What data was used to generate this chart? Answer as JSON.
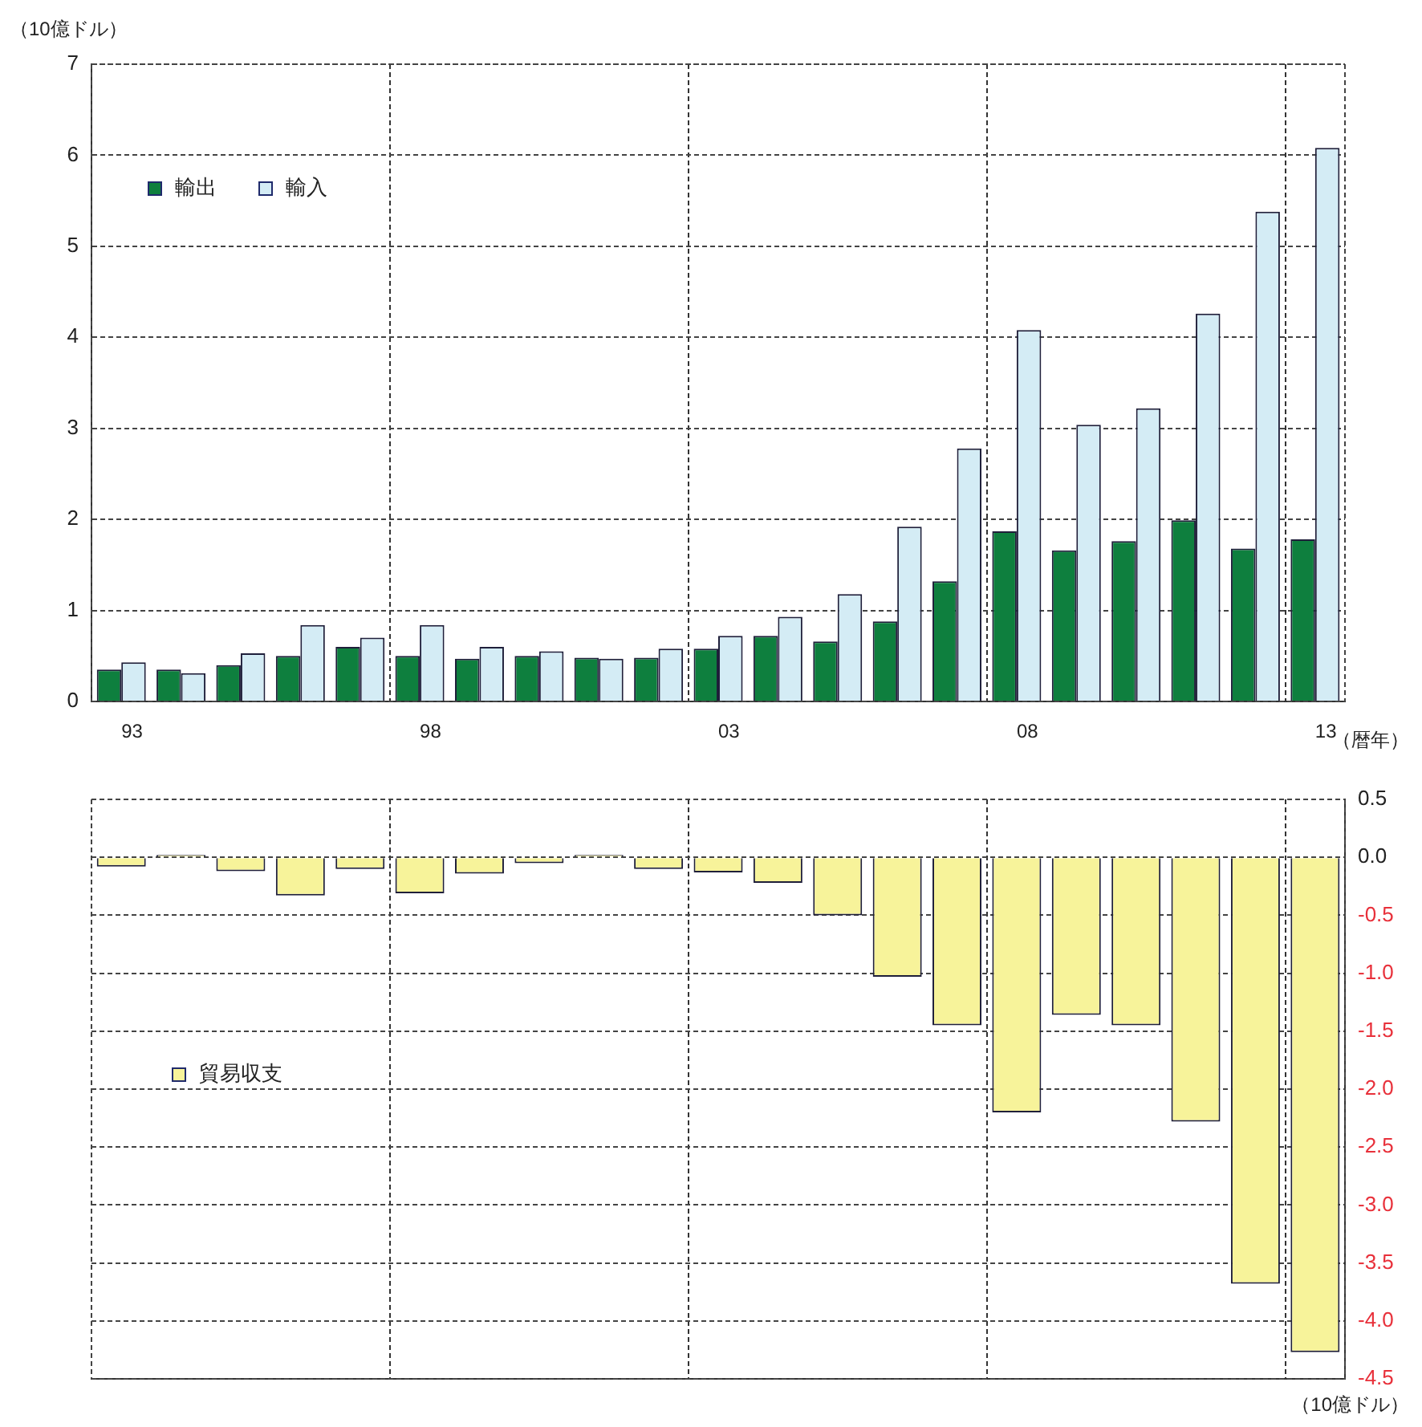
{
  "chart_data": [
    {
      "type": "bar",
      "ylabel": "（10億ドル）",
      "xlabel": "（暦年）",
      "categories": [
        "93",
        null,
        null,
        null,
        null,
        "98",
        null,
        null,
        null,
        null,
        "03",
        null,
        null,
        null,
        null,
        "08",
        null,
        null,
        null,
        null,
        "13"
      ],
      "series": [
        {
          "name": "輸出",
          "color": "#0e7f3e",
          "values": [
            0.35,
            0.35,
            0.4,
            0.5,
            0.6,
            0.5,
            0.47,
            0.5,
            0.48,
            0.48,
            0.58,
            0.72,
            0.66,
            0.88,
            1.32,
            1.87,
            1.66,
            1.76,
            1.99,
            1.68,
            1.78
          ]
        },
        {
          "name": "輸入",
          "color": "#d4ecf5",
          "values": [
            0.43,
            0.31,
            0.53,
            0.84,
            0.7,
            0.84,
            0.6,
            0.55,
            0.47,
            0.58,
            0.72,
            0.93,
            1.18,
            1.92,
            2.78,
            4.08,
            3.04,
            3.22,
            4.26,
            5.38,
            6.08
          ]
        }
      ],
      "ylim": [
        0,
        7
      ],
      "yticks": [
        0,
        1,
        2,
        3,
        4,
        5,
        6,
        7
      ],
      "grid": true,
      "legend": "top left"
    },
    {
      "type": "bar",
      "ylabel": "（10億ドル）",
      "categories": [
        "93",
        null,
        null,
        null,
        null,
        "98",
        null,
        null,
        null,
        null,
        "03",
        null,
        null,
        null,
        null,
        "08",
        null,
        null,
        null,
        null,
        "13"
      ],
      "series": [
        {
          "name": "貿易収支",
          "color": "#f7f39a",
          "values": [
            -0.08,
            0.02,
            -0.12,
            -0.33,
            -0.1,
            -0.31,
            -0.14,
            -0.05,
            0.02,
            -0.1,
            -0.13,
            -0.22,
            -0.5,
            -1.03,
            -1.45,
            -2.2,
            -1.36,
            -1.45,
            -2.28,
            -3.68,
            -4.27
          ]
        }
      ],
      "ylim": [
        -4.5,
        0.5
      ],
      "yticks": [
        {
          "value": 0.5,
          "label": "0.5"
        },
        {
          "value": 0,
          "label": "0.0"
        },
        {
          "value": -0.5,
          "label": "-0.5"
        },
        {
          "value": -1,
          "label": "-1.0"
        },
        {
          "value": -1.5,
          "label": "-1.5"
        },
        {
          "value": -2,
          "label": "-2.0"
        },
        {
          "value": -2.5,
          "label": "-2.5"
        },
        {
          "value": -3,
          "label": "-3.0"
        },
        {
          "value": -3.5,
          "label": "-3.5"
        },
        {
          "value": -4,
          "label": "-4.0"
        },
        {
          "value": -4.5,
          "label": "-4.5"
        }
      ],
      "grid": true,
      "legend": "left",
      "tick_labels": "y"
    }
  ]
}
